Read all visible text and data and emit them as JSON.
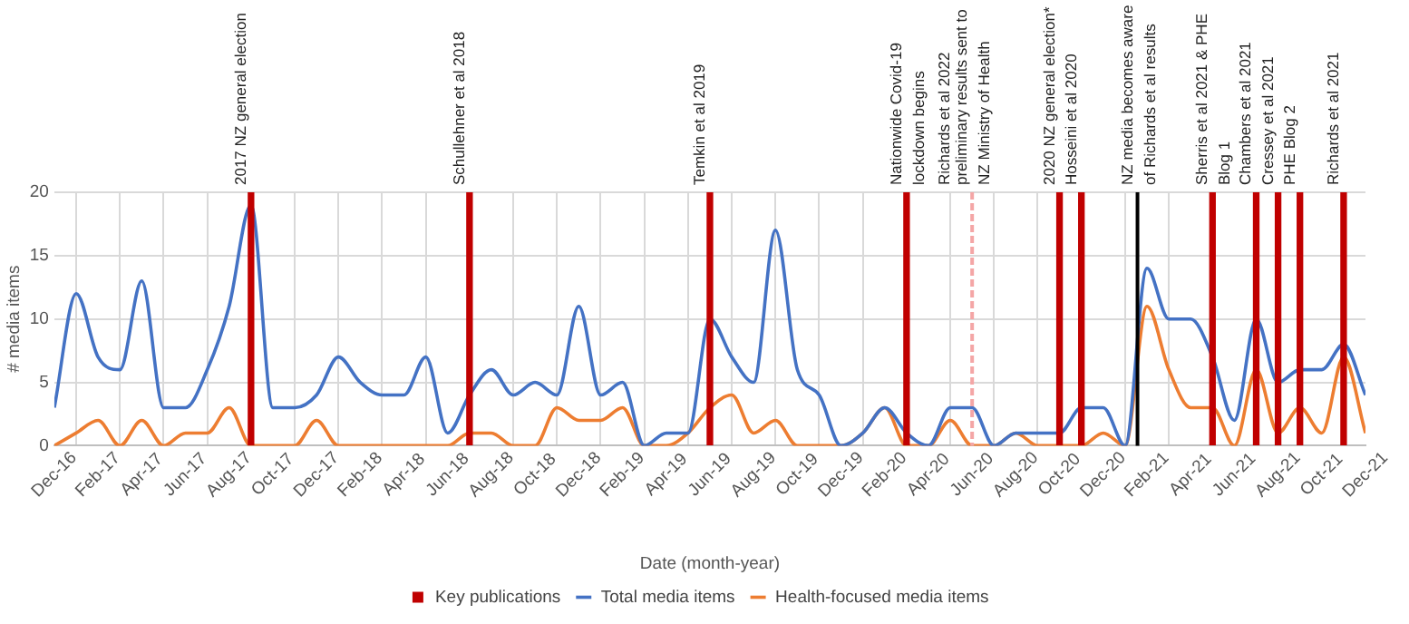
{
  "chart_data": {
    "type": "line",
    "xlabel": "Date (month-year)",
    "ylabel": "# media items",
    "x": [
      "2016-12",
      "2017-01",
      "2017-02",
      "2017-03",
      "2017-04",
      "2017-05",
      "2017-06",
      "2017-07",
      "2017-08",
      "2017-09",
      "2017-10",
      "2017-11",
      "2017-12",
      "2018-01",
      "2018-02",
      "2018-03",
      "2018-04",
      "2018-05",
      "2018-06",
      "2018-07",
      "2018-08",
      "2018-09",
      "2018-10",
      "2018-11",
      "2018-12",
      "2019-01",
      "2019-02",
      "2019-03",
      "2019-04",
      "2019-05",
      "2019-06",
      "2019-07",
      "2019-08",
      "2019-09",
      "2019-10",
      "2019-11",
      "2019-12",
      "2020-01",
      "2020-02",
      "2020-03",
      "2020-04",
      "2020-05",
      "2020-06",
      "2020-07",
      "2020-08",
      "2020-09",
      "2020-10",
      "2020-11",
      "2020-12",
      "2021-01",
      "2021-02",
      "2021-03",
      "2021-04",
      "2021-05",
      "2021-06",
      "2021-07",
      "2021-08",
      "2021-09",
      "2021-10",
      "2021-11",
      "2021-12"
    ],
    "series": [
      {
        "name": "Key publications",
        "type": "bar",
        "color": "#c00000",
        "x": [
          "2017-09",
          "2018-07",
          "2019-06",
          "2020-03",
          "2020-10",
          "2020-11",
          "2021-05",
          "2021-07",
          "2021-08",
          "2021-09",
          "2021-11"
        ],
        "values": [
          20,
          20,
          20,
          20,
          20,
          20,
          20,
          20,
          20,
          20,
          20
        ]
      },
      {
        "name": "Total media items",
        "color": "#4472c4",
        "values": [
          3,
          12,
          7,
          6,
          13,
          3,
          3,
          6,
          11,
          19,
          3,
          3,
          4,
          7,
          5,
          4,
          4,
          7,
          1,
          4,
          6,
          4,
          5,
          4,
          11,
          4,
          5,
          0,
          1,
          1,
          10,
          7,
          5,
          17,
          6,
          4,
          0,
          1,
          3,
          1,
          0,
          3,
          3,
          0,
          1,
          1,
          1,
          3,
          3,
          0,
          14,
          10,
          10,
          7,
          2,
          10,
          5,
          6,
          6,
          8,
          4
        ]
      },
      {
        "name": "Health-focused media items",
        "color": "#ed7d31",
        "values": [
          0,
          1,
          2,
          0,
          2,
          0,
          1,
          1,
          3,
          0,
          0,
          0,
          2,
          0,
          0,
          0,
          0,
          0,
          0,
          1,
          1,
          0,
          0,
          3,
          2,
          2,
          3,
          0,
          0,
          1,
          3,
          4,
          1,
          2,
          0,
          0,
          0,
          1,
          3,
          0,
          0,
          2,
          0,
          0,
          1,
          0,
          0,
          0,
          1,
          0,
          11,
          6,
          3,
          3,
          0,
          6,
          1,
          3,
          1,
          7,
          1
        ]
      }
    ],
    "ref_lines": [
      {
        "axis": "x",
        "value": "2020-06",
        "label": "Richards et al 2022 preliminary results sent to NZ Ministry of Health",
        "color": "#f4a6a6",
        "line_style": "dashed"
      },
      {
        "axis": "x",
        "value": "2021-01-18",
        "label": "NZ media becomes aware of Richards et al results",
        "color": "#000000",
        "line_style": "solid"
      }
    ],
    "annotations": [
      {
        "text": "2017 NZ general election",
        "x": "2017-09",
        "y": 20
      },
      {
        "text": "Schullehner et al 2018",
        "x": "2018-07",
        "y": 20
      },
      {
        "text": "Temkin et al 2019",
        "x": "2019-06",
        "y": 20
      },
      {
        "text": "Nationwide Covid-19 lockdown begins",
        "x": "2020-03",
        "y": 20
      },
      {
        "text": "2020 NZ general election*",
        "x": "2020-10",
        "y": 20
      },
      {
        "text": "Hosseini et al 2020",
        "x": "2020-11",
        "y": 20
      },
      {
        "text": "Sherris et al 2021 & PHE Blog 1",
        "x": "2021-05",
        "y": 20
      },
      {
        "text": "Chambers et al 2021",
        "x": "2021-07",
        "y": 20
      },
      {
        "text": "Cressey et al 2021",
        "x": "2021-08",
        "y": 20
      },
      {
        "text": "PHE Blog 2",
        "x": "2021-09",
        "y": 20
      },
      {
        "text": "Richards et al 2021",
        "x": "2021-11",
        "y": 20
      }
    ],
    "xlim": [
      "2016-12",
      "2021-12"
    ],
    "xticks": [
      {
        "value": "2016-12",
        "label": "Dec-16"
      },
      {
        "value": "2017-02",
        "label": "Feb-17"
      },
      {
        "value": "2017-04",
        "label": "Apr-17"
      },
      {
        "value": "2017-06",
        "label": "Jun-17"
      },
      {
        "value": "2017-08",
        "label": "Aug-17"
      },
      {
        "value": "2017-10",
        "label": "Oct-17"
      },
      {
        "value": "2017-12",
        "label": "Dec-17"
      },
      {
        "value": "2018-02",
        "label": "Feb-18"
      },
      {
        "value": "2018-04",
        "label": "Apr-18"
      },
      {
        "value": "2018-06",
        "label": "Jun-18"
      },
      {
        "value": "2018-08",
        "label": "Aug-18"
      },
      {
        "value": "2018-10",
        "label": "Oct-18"
      },
      {
        "value": "2018-12",
        "label": "Dec-18"
      },
      {
        "value": "2019-02",
        "label": "Feb-19"
      },
      {
        "value": "2019-04",
        "label": "Apr-19"
      },
      {
        "value": "2019-06",
        "label": "Jun-19"
      },
      {
        "value": "2019-08",
        "label": "Aug-19"
      },
      {
        "value": "2019-10",
        "label": "Oct-19"
      },
      {
        "value": "2019-12",
        "label": "Dec-19"
      },
      {
        "value": "2020-02",
        "label": "Feb-20"
      },
      {
        "value": "2020-04",
        "label": "Apr-20"
      },
      {
        "value": "2020-06",
        "label": "Jun-20"
      },
      {
        "value": "2020-08",
        "label": "Aug-20"
      },
      {
        "value": "2020-10",
        "label": "Oct-20"
      },
      {
        "value": "2020-12",
        "label": "Dec-20"
      },
      {
        "value": "2021-02",
        "label": "Feb-21"
      },
      {
        "value": "2021-04",
        "label": "Apr-21"
      },
      {
        "value": "2021-06",
        "label": "Jun-21"
      },
      {
        "value": "2021-08",
        "label": "Aug-21"
      },
      {
        "value": "2021-10",
        "label": "Oct-21"
      },
      {
        "value": "2021-12",
        "label": "Dec-21"
      }
    ],
    "ylim": [
      0,
      20
    ],
    "yticks": [
      0,
      5,
      10,
      15,
      20
    ],
    "grid": true,
    "legend": "bottom",
    "marker": "none",
    "line_style": "solid"
  }
}
